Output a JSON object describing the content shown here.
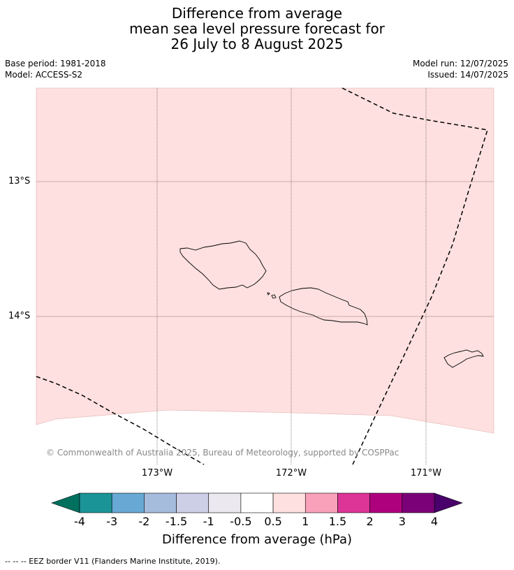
{
  "title": {
    "line1": "Difference from average",
    "line2": "mean sea level pressure forecast for",
    "line3": "26 July to 8 August 2025"
  },
  "meta": {
    "base_period": "Base period: 1981-2018",
    "model": "Model: ACCESS-S2",
    "model_run": "Model run: 12/07/2025",
    "issued": "Issued: 14/07/2025"
  },
  "map": {
    "lat_labels": [
      "13°S",
      "14°S"
    ],
    "lon_labels": [
      "173°W",
      "172°W",
      "171°W"
    ],
    "fill_category": "0.5 to 1",
    "fill_color": "#fde0df",
    "copyright": "© Commonwealth of Australia 2025, Bureau of Meteorology, supported by COSPPac"
  },
  "colorbar": {
    "title": "Difference from average (hPa)",
    "ticks": [
      "-4",
      "-3",
      "-2",
      "-1.5",
      "-1",
      "-0.5",
      "0.5",
      "1",
      "1.5",
      "2",
      "3",
      "4"
    ],
    "colors": [
      "#1a9497",
      "#67a9d4",
      "#a6bcdd",
      "#cccfe6",
      "#ebe9ef",
      "#ffffff",
      "#fde0df",
      "#f9a1bb",
      "#dd3497",
      "#ae017e",
      "#7a0177"
    ],
    "under_color": "#00705f",
    "over_color": "#49006a"
  },
  "footnote": "--  --  -- EEZ border V11 (Flanders Marine Institute, 2019)."
}
